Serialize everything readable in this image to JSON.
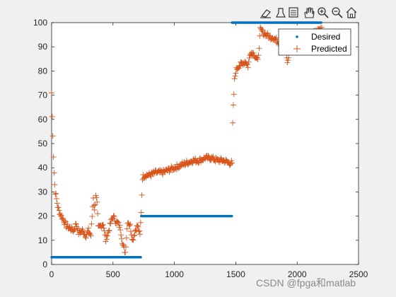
{
  "toolbar": {
    "icons": [
      "brush-icon",
      "data-tip-icon",
      "link-icon",
      "pan-hand-icon",
      "zoom-in-icon",
      "zoom-out-icon",
      "home-icon"
    ]
  },
  "watermark": "CSDN @fpga和matlab",
  "chart_data": {
    "type": "scatter",
    "title": "",
    "xlabel": "",
    "ylabel": "",
    "xlim": [
      0,
      2500
    ],
    "ylim": [
      0,
      100
    ],
    "xticks": [
      0,
      500,
      1000,
      1500,
      2000,
      2500
    ],
    "yticks": [
      0,
      10,
      20,
      30,
      40,
      50,
      60,
      70,
      80,
      90,
      100
    ],
    "grid": false,
    "legend_position": "top-right",
    "colors": {
      "desired": "#0072bd",
      "predicted": "#d95319"
    },
    "series": [
      {
        "name": "Desired",
        "marker": "dot",
        "segments": [
          {
            "x": [
              0,
              730
            ],
            "y": 3
          },
          {
            "x": [
              730,
              1470
            ],
            "y": 20
          },
          {
            "x": [
              1470,
              2200
            ],
            "y": 100
          }
        ]
      },
      {
        "name": "Predicted",
        "marker": "plus",
        "x": [
          0,
          5,
          10,
          15,
          20,
          25,
          30,
          40,
          50,
          60,
          80,
          100,
          120,
          150,
          180,
          200,
          220,
          250,
          280,
          300,
          320,
          340,
          350,
          360,
          370,
          380,
          400,
          420,
          440,
          460,
          480,
          500,
          520,
          540,
          560,
          580,
          600,
          620,
          640,
          660,
          680,
          700,
          720,
          730,
          740,
          760,
          800,
          850,
          900,
          950,
          1000,
          1050,
          1100,
          1150,
          1200,
          1250,
          1300,
          1350,
          1400,
          1450,
          1470,
          1475,
          1480,
          1490,
          1500,
          1520,
          1550,
          1580,
          1600,
          1620,
          1650,
          1680,
          1700,
          1720,
          1750,
          1780,
          1800,
          1850,
          1900,
          1920,
          1950,
          2000,
          2050,
          2100,
          2150,
          2200
        ],
        "y": [
          71,
          61,
          54,
          45,
          38,
          33,
          30,
          27,
          24,
          22,
          20,
          18,
          16,
          15,
          14,
          17,
          13,
          14,
          12,
          14,
          12,
          28,
          22,
          29,
          25,
          15,
          16,
          17,
          10,
          13,
          17,
          20,
          18,
          17,
          15,
          8,
          5,
          18,
          16,
          10,
          14,
          16,
          12,
          22,
          36,
          37,
          37,
          38,
          38,
          39,
          40,
          41,
          42,
          43,
          43,
          44,
          44,
          43,
          43,
          42,
          42,
          58,
          65,
          76,
          80,
          82,
          83,
          84,
          82,
          88,
          87,
          84,
          97,
          96,
          95,
          94,
          94,
          92,
          94,
          83,
          92,
          94,
          95,
          95,
          96,
          98
        ]
      }
    ]
  }
}
